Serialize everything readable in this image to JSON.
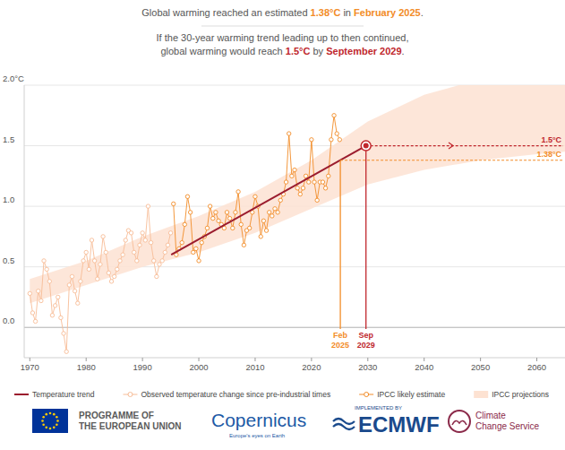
{
  "chart_data": {
    "type": "line",
    "title": [
      {
        "text": "Global warming reached an estimated "
      },
      {
        "text": "1.38°C",
        "color": "#f28c28"
      },
      {
        "text": " in "
      },
      {
        "text": "February 2025",
        "color": "#f28c28"
      },
      {
        "text": "."
      }
    ],
    "subtitle": [
      [
        {
          "text": "If the 30-year warming trend leading up to then continued,"
        }
      ],
      [
        {
          "text": "global warming would reach "
        },
        {
          "text": "1.5°C",
          "color": "#c0272d"
        },
        {
          "text": " by "
        },
        {
          "text": "September 2029",
          "color": "#c0272d"
        },
        {
          "text": "."
        }
      ]
    ],
    "xlim": [
      1969,
      2065
    ],
    "ylim": [
      -0.25,
      2.0
    ],
    "xticks": [
      1970,
      1980,
      1990,
      2000,
      2010,
      2020,
      2030,
      2040,
      2050,
      2060
    ],
    "yticks": [
      {
        "value": 0.0,
        "label": "0.0"
      },
      0.5,
      {
        "value": 1.0,
        "label": "1.0"
      },
      1.5,
      {
        "value": 2.0,
        "label": "2.0°C"
      }
    ],
    "grid": true,
    "series": [
      {
        "name": "Temperature trend",
        "type": "line",
        "color": "#9b1c2e",
        "line_style": "solid",
        "x": [
          1995.1,
          2029.67
        ],
        "values": [
          0.6,
          1.5
        ]
      },
      {
        "name": "Observed temperature change since pre-industrial times",
        "type": "line",
        "color": "#f7bc96",
        "marker": "circle",
        "x": [
          1970,
          1970.5,
          1971,
          1971.5,
          1972,
          1972.5,
          1973,
          1973.5,
          1974,
          1974.5,
          1975,
          1975.5,
          1976,
          1976.5,
          1977,
          1977.5,
          1978,
          1978.5,
          1979,
          1979.5,
          1980,
          1980.5,
          1981,
          1981.5,
          1982,
          1982.5,
          1983,
          1983.5,
          1984,
          1984.5,
          1985,
          1985.5,
          1986,
          1986.5,
          1987,
          1987.5,
          1988,
          1988.5,
          1989,
          1989.5,
          1990,
          1990.5,
          1991,
          1991.5,
          1992,
          1992.5,
          1993,
          1993.5,
          1994,
          1994.5,
          1995
        ],
        "values": [
          0.28,
          0.12,
          0.05,
          0.3,
          0.22,
          0.55,
          0.48,
          0.38,
          0.1,
          0.18,
          0.25,
          0.08,
          -0.05,
          -0.2,
          0.35,
          0.42,
          0.3,
          0.2,
          0.38,
          0.55,
          0.62,
          0.48,
          0.72,
          0.55,
          0.4,
          0.52,
          0.75,
          0.62,
          0.45,
          0.38,
          0.42,
          0.48,
          0.55,
          0.6,
          0.72,
          0.8,
          0.78,
          0.62,
          0.55,
          0.68,
          0.78,
          0.72,
          1.0,
          0.7,
          0.55,
          0.42,
          0.52,
          0.55,
          0.62,
          0.68,
          0.78
        ]
      },
      {
        "name": "IPCC likely estimate",
        "type": "line",
        "color": "#f28c28",
        "marker": "circle",
        "x": [
          1995.5,
          1996,
          1996.5,
          1997,
          1997.5,
          1998,
          1998.5,
          1999,
          1999.5,
          2000,
          2000.5,
          2001,
          2001.5,
          2002,
          2002.5,
          2003,
          2003.5,
          2004,
          2004.5,
          2005,
          2005.5,
          2006,
          2006.5,
          2007,
          2007.5,
          2008,
          2008.5,
          2009,
          2009.5,
          2010,
          2010.5,
          2011,
          2011.5,
          2012,
          2012.5,
          2013,
          2013.5,
          2014,
          2014.5,
          2015,
          2015.5,
          2016,
          2016.5,
          2017,
          2017.5,
          2018,
          2018.5,
          2019,
          2019.5,
          2020,
          2020.5,
          2021,
          2021.5,
          2022,
          2022.5,
          2023,
          2023.5,
          2024,
          2024.5,
          2025
        ],
        "values": [
          1.02,
          0.6,
          0.65,
          0.7,
          0.85,
          1.08,
          0.95,
          0.62,
          0.65,
          0.55,
          0.7,
          0.75,
          0.82,
          1.0,
          0.9,
          0.95,
          0.88,
          0.85,
          0.82,
          0.95,
          0.9,
          0.82,
          0.95,
          1.12,
          0.85,
          0.68,
          0.8,
          0.82,
          0.95,
          1.08,
          1.0,
          0.75,
          0.88,
          0.8,
          0.95,
          0.92,
          0.98,
          0.95,
          1.05,
          1.1,
          1.2,
          1.6,
          1.25,
          1.3,
          1.15,
          1.1,
          1.15,
          1.25,
          1.2,
          1.55,
          1.2,
          1.05,
          1.2,
          1.2,
          1.15,
          1.25,
          1.55,
          1.75,
          1.6,
          1.55
        ]
      },
      {
        "name": "IPCC projections",
        "type": "area",
        "color": "#fde2d2",
        "x": [
          1970,
          1980,
          1990,
          2000,
          2010,
          2020,
          2030,
          2040,
          2050,
          2060,
          2065
        ],
        "lower": [
          0.2,
          0.35,
          0.5,
          0.62,
          0.78,
          0.98,
          1.18,
          1.3,
          1.38,
          1.43,
          1.45
        ],
        "upper": [
          0.4,
          0.55,
          0.75,
          0.92,
          1.12,
          1.38,
          1.7,
          1.92,
          2.05,
          2.12,
          2.15
        ]
      }
    ],
    "annotations": [
      {
        "x": 2025.12,
        "y": 1.38,
        "x_label": [
          "Feb",
          "2025"
        ],
        "y_label": "1.38°C",
        "color": "#f28c28",
        "line_style": "dashed"
      },
      {
        "x": 2029.67,
        "y": 1.5,
        "x_label": [
          "Sep",
          "2029"
        ],
        "y_label": "1.5°C",
        "color": "#c0272d",
        "line_style": "dashed",
        "marker": "circle"
      }
    ]
  },
  "footer": {
    "eu": [
      "PROGRAMME OF",
      "THE EUROPEAN UNION"
    ],
    "copernicus": "Copernicus",
    "copernicus_tagline": "Europe's eyes on Earth",
    "implemented": "IMPLEMENTED BY",
    "ecmwf": "ECMWF",
    "c3s": [
      "Climate",
      "Change Service"
    ]
  }
}
